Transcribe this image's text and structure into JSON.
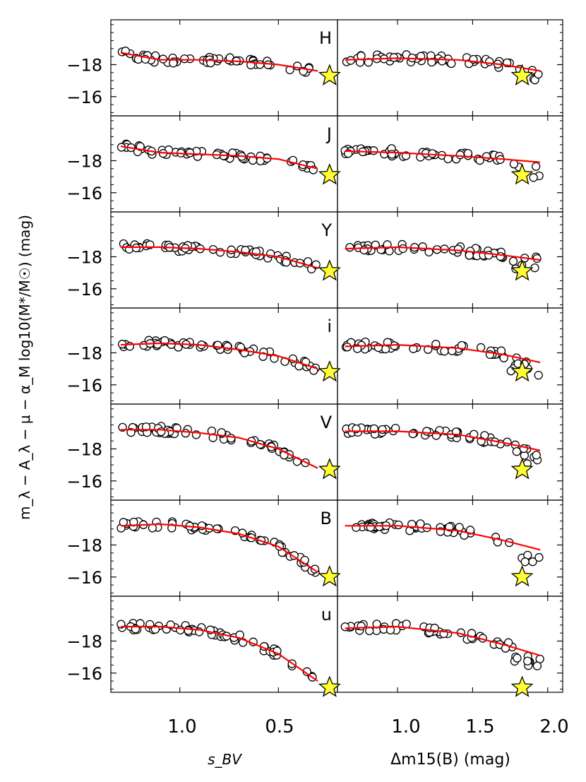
{
  "figure": {
    "y_axis_label": "m_λ − A_λ − μ − α_M log10(M*/M☉) (mag)",
    "x_axis_label_left": "s_BV",
    "x_axis_label_right": "Δm15(B) (mag)",
    "x_ticks_left": [
      "1.0",
      "0.5"
    ],
    "x_ticks_right": [
      "1.0",
      "1.5",
      "2.0"
    ],
    "y_ticks": [
      "−18",
      "−16"
    ]
  },
  "chart_data": {
    "type": "scatter",
    "description_axes": {
      "left": {
        "xlabel": "s_BV",
        "xlim": [
          1.35,
          0.2
        ],
        "ticks": [
          1.0,
          0.5
        ]
      },
      "right": {
        "xlabel": "Δm15(B) (mag)",
        "xlim": [
          0.6,
          2.1
        ],
        "ticks": [
          1.0,
          1.5,
          2.0
        ]
      },
      "ylabel": "m_λ − A_λ − μ − α_M log10(M*/M☉) (mag)",
      "ylim": [
        -14.8,
        -20.8
      ],
      "yticks": [
        -18,
        -16
      ],
      "inverted_y": true
    },
    "bands": [
      {
        "label": "H",
        "fit_left": [
          [
            1.3,
            -18.75
          ],
          [
            1.1,
            -18.3
          ],
          [
            0.9,
            -18.3
          ],
          [
            0.7,
            -18.2
          ],
          [
            0.5,
            -18.0
          ],
          [
            0.3,
            -17.6
          ]
        ],
        "fit_right": [
          [
            0.65,
            -18.3
          ],
          [
            1.0,
            -18.4
          ],
          [
            1.4,
            -18.3
          ],
          [
            1.7,
            -18.0
          ],
          [
            1.95,
            -17.6
          ]
        ],
        "star_left": [
          0.24,
          -17.3
        ],
        "star_right": [
          1.83,
          -17.3
        ],
        "offset": -0.2
      },
      {
        "label": "J",
        "fit_left": [
          [
            1.3,
            -18.9
          ],
          [
            1.1,
            -18.5
          ],
          [
            0.9,
            -18.4
          ],
          [
            0.7,
            -18.3
          ],
          [
            0.5,
            -18.1
          ],
          [
            0.3,
            -17.5
          ]
        ],
        "fit_right": [
          [
            0.65,
            -18.6
          ],
          [
            1.0,
            -18.5
          ],
          [
            1.4,
            -18.3
          ],
          [
            1.7,
            -18.1
          ],
          [
            1.95,
            -17.9
          ]
        ],
        "star_left": [
          0.24,
          -17.1
        ],
        "star_right": [
          1.83,
          -17.1
        ],
        "offset": -0.2
      },
      {
        "label": "Y",
        "fit_left": [
          [
            1.3,
            -18.6
          ],
          [
            1.1,
            -18.6
          ],
          [
            0.9,
            -18.5
          ],
          [
            0.7,
            -18.3
          ],
          [
            0.5,
            -18.0
          ],
          [
            0.3,
            -17.3
          ]
        ],
        "fit_right": [
          [
            0.65,
            -18.5
          ],
          [
            1.0,
            -18.6
          ],
          [
            1.4,
            -18.4
          ],
          [
            1.7,
            -18.1
          ],
          [
            1.95,
            -17.8
          ]
        ],
        "star_left": [
          0.24,
          -17.1
        ],
        "star_right": [
          1.83,
          -17.1
        ],
        "offset": -0.2
      },
      {
        "label": "i",
        "fit_left": [
          [
            1.3,
            -18.5
          ],
          [
            1.1,
            -18.6
          ],
          [
            0.9,
            -18.5
          ],
          [
            0.7,
            -18.2
          ],
          [
            0.5,
            -17.8
          ],
          [
            0.3,
            -17.0
          ]
        ],
        "fit_right": [
          [
            0.65,
            -18.4
          ],
          [
            1.0,
            -18.5
          ],
          [
            1.4,
            -18.3
          ],
          [
            1.7,
            -17.9
          ],
          [
            1.95,
            -17.4
          ]
        ],
        "star_left": [
          0.24,
          -16.8
        ],
        "star_right": [
          1.83,
          -16.8
        ],
        "offset": -0.2
      },
      {
        "label": "V",
        "fit_left": [
          [
            1.3,
            -19.2
          ],
          [
            1.1,
            -19.2
          ],
          [
            0.9,
            -19.0
          ],
          [
            0.7,
            -18.7
          ],
          [
            0.5,
            -18.0
          ],
          [
            0.3,
            -16.8
          ]
        ],
        "fit_right": [
          [
            0.65,
            -19.1
          ],
          [
            1.0,
            -19.1
          ],
          [
            1.4,
            -18.9
          ],
          [
            1.7,
            -18.4
          ],
          [
            1.95,
            -17.9
          ]
        ],
        "star_left": [
          0.24,
          -16.7
        ],
        "star_right": [
          1.83,
          -16.7
        ],
        "offset": 0.0
      },
      {
        "label": "B",
        "fit_left": [
          [
            1.3,
            -19.2
          ],
          [
            1.1,
            -19.3
          ],
          [
            0.9,
            -19.1
          ],
          [
            0.7,
            -18.7
          ],
          [
            0.5,
            -17.9
          ],
          [
            0.3,
            -16.3
          ]
        ],
        "fit_right": [
          [
            0.65,
            -19.2
          ],
          [
            1.0,
            -19.2
          ],
          [
            1.4,
            -18.9
          ],
          [
            1.7,
            -18.3
          ],
          [
            1.95,
            -17.7
          ]
        ],
        "star_left": [
          0.24,
          -16.0
        ],
        "star_right": [
          1.83,
          -16.0
        ],
        "offset": 0.0
      },
      {
        "label": "u",
        "fit_left": [
          [
            1.3,
            -18.9
          ],
          [
            1.1,
            -18.9
          ],
          [
            0.9,
            -18.7
          ],
          [
            0.7,
            -18.2
          ],
          [
            0.5,
            -17.2
          ],
          [
            0.3,
            -15.5
          ]
        ],
        "fit_right": [
          [
            0.65,
            -18.8
          ],
          [
            1.0,
            -18.9
          ],
          [
            1.4,
            -18.5
          ],
          [
            1.7,
            -17.8
          ],
          [
            1.95,
            -17.1
          ]
        ],
        "star_left": [
          0.24,
          -15.1
        ],
        "star_right": [
          1.83,
          -15.1
        ],
        "offset": 0.0
      }
    ],
    "colors": {
      "fit": "#ff0000",
      "star": "#ffff33",
      "marker_face": "#ffffff",
      "edge": "#000000"
    }
  }
}
